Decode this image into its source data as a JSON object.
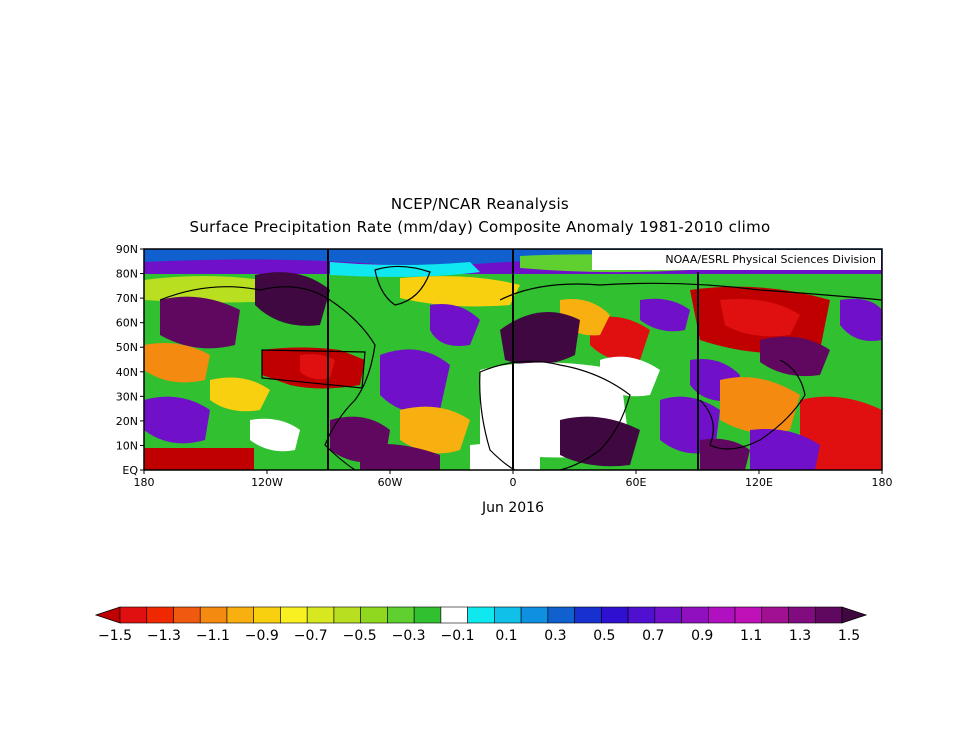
{
  "title": "NCEP/NCAR Reanalysis",
  "subtitle": "Surface Precipitation Rate (mm/day) Composite Anomaly 1981-2010 climo",
  "credit": "NOAA/ESRL Physical Sciences Division",
  "date_label": "Jun 2016",
  "lat_ticks": [
    "90N",
    "80N",
    "70N",
    "60N",
    "50N",
    "40N",
    "30N",
    "20N",
    "10N",
    "EQ"
  ],
  "lon_ticks": [
    "180",
    "120W",
    "60W",
    "0",
    "60E",
    "120E",
    "180"
  ],
  "colorbar": {
    "labels": [
      "-1.5",
      "-1.3",
      "-1.1",
      "-0.9",
      "-0.7",
      "-0.5",
      "-0.3",
      "-0.1",
      "0.1",
      "0.3",
      "0.5",
      "0.7",
      "0.9",
      "1.1",
      "1.3",
      "1.5"
    ],
    "colors": [
      "#c00000",
      "#e01010",
      "#f02800",
      "#f05a10",
      "#f48a10",
      "#f8b010",
      "#f8d010",
      "#f8f020",
      "#d8e820",
      "#b8e020",
      "#90d820",
      "#60d030",
      "#30c030",
      "#ffffff",
      "#10e8f0",
      "#10c0e8",
      "#1090e0",
      "#1060d0",
      "#1830d0",
      "#3010d0",
      "#5010d0",
      "#7010c8",
      "#9010c0",
      "#b010c0",
      "#c010b8",
      "#a01090",
      "#800c80",
      "#600860",
      "#400840"
    ]
  },
  "legend": {
    "min": -1.5,
    "max": 1.5,
    "step": 0.1
  }
}
